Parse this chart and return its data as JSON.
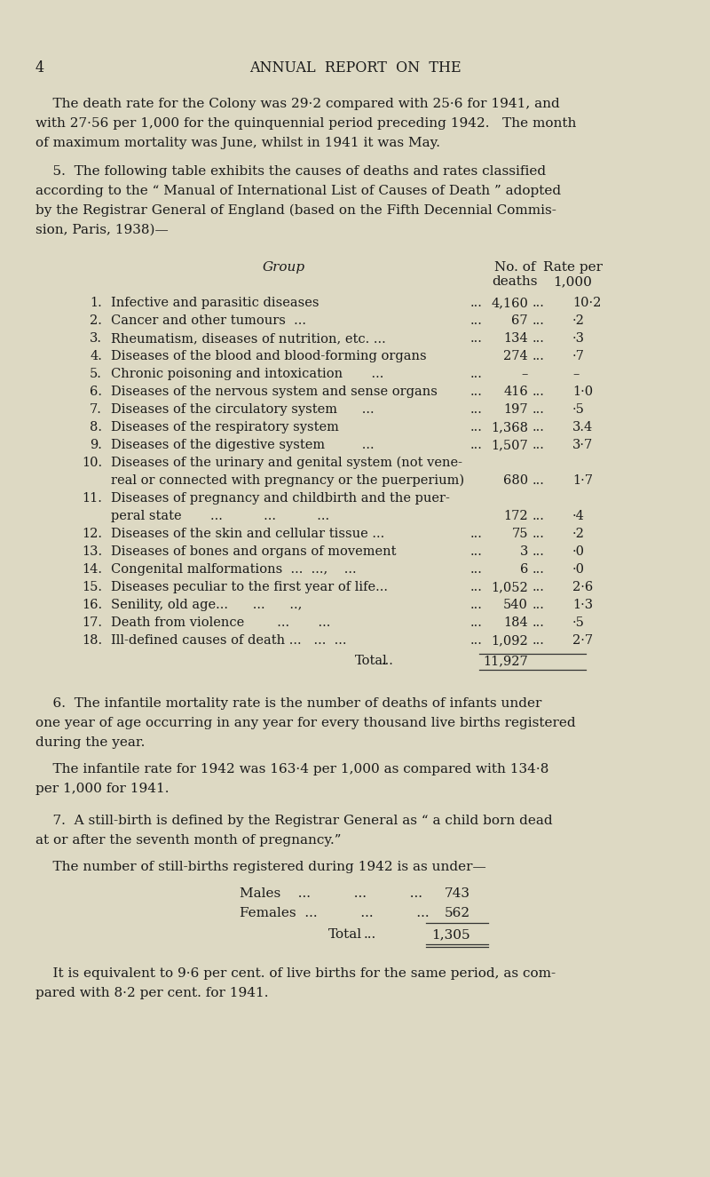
{
  "bg_color": "#ddd9c3",
  "text_color": "#1a1a1a",
  "page_number": "4",
  "header": "ANNUAL  REPORT  ON  THE",
  "para1_lines": [
    "    The death rate for the Colony was 29·2 compared with 25·6 for 1941, and",
    "with 27·56 per 1,000 for the quinquennial period preceding 1942.   The month",
    "of maximum mortality was June, whilst in 1941 it was May."
  ],
  "para2_lines": [
    "    5.  The following table exhibits the causes of deaths and rates classified",
    "according to the “ Manual of International List of Causes of Death ” adopted",
    "by the Registrar General of England (based on the Fifth Decennial Commis-",
    "sion, Paris, 1938)—"
  ],
  "col_group_label": "Group",
  "col_no_deaths": "No. of",
  "col_deaths": "deaths",
  "col_rate_per": "Rate per",
  "col_1000": "1,000",
  "rows": [
    {
      "num": "1.",
      "text": "Infective and parasitic diseases",
      "dots_mid": "...",
      "dots_pre": "...",
      "deaths": "4,160",
      "dots_post": "...",
      "rate": "10·2"
    },
    {
      "num": "2.",
      "text": "Cancer and other tumours  ...",
      "dots_mid": "...",
      "dots_pre": "...",
      "deaths": "67",
      "dots_post": "...",
      "rate": "·2"
    },
    {
      "num": "3.",
      "text": "Rheumatism, diseases of nutrition, etc. ...",
      "dots_mid": "...",
      "dots_pre": "...",
      "deaths": "134",
      "dots_post": "...",
      "rate": "·3"
    },
    {
      "num": "4.",
      "text": "Diseases of the blood and blood-forming organs",
      "dots_mid": "...",
      "dots_pre": "",
      "deaths": "274",
      "dots_post": "...",
      "rate": "·7"
    },
    {
      "num": "5.",
      "text": "Chronic poisoning and intoxication       ...",
      "dots_mid": "...",
      "dots_pre": "...",
      "deaths": "–",
      "dots_post": "",
      "rate": "–"
    },
    {
      "num": "6.",
      "text": "Diseases of the nervous system and sense organs",
      "dots_mid": "...",
      "dots_pre": "...",
      "deaths": "416",
      "dots_post": "...",
      "rate": "1·0"
    },
    {
      "num": "7.",
      "text": "Diseases of the circulatory system      ...",
      "dots_mid": "...",
      "dots_pre": "...",
      "deaths": "197",
      "dots_post": "...",
      "rate": "·5"
    },
    {
      "num": "8.",
      "text": "Diseases of the respiratory system",
      "dots_mid": "...",
      "dots_pre": "...",
      "deaths": "1,368",
      "dots_post": "...",
      "rate": "3.4"
    },
    {
      "num": "9.",
      "text": "Diseases of the digestive system         ...",
      "dots_mid": "...",
      "dots_pre": "...",
      "deaths": "1,507",
      "dots_post": "...",
      "rate": "3·7"
    },
    {
      "num": "10.",
      "text1": "Diseases of the urinary and genital system (not vene-",
      "text2": "real or connected with pregnancy or the puerperium)",
      "deaths": "680",
      "dots_post": "...",
      "rate": "1·7",
      "double": true
    },
    {
      "num": "11.",
      "text1": "Diseases of pregnancy and childbirth and the puer-",
      "text2": "peral state       ...          ...          ...",
      "dots_pre": "...",
      "deaths": "172",
      "dots_post": "...",
      "rate": "·4",
      "double": true
    },
    {
      "num": "12.",
      "text": "Diseases of the skin and cellular tissue ...",
      "dots_mid": "...",
      "dots_pre": "...",
      "deaths": "75",
      "dots_post": "...",
      "rate": "·2"
    },
    {
      "num": "13.",
      "text": "Diseases of bones and organs of movement",
      "dots_mid": "...",
      "dots_pre": "...",
      "deaths": "3",
      "dots_post": "...",
      "rate": "·0"
    },
    {
      "num": "14.",
      "text": "Congenital malformations  ...  ...,    ...",
      "dots_mid": "...",
      "dots_pre": "...",
      "deaths": "6",
      "dots_post": "...",
      "rate": "·0"
    },
    {
      "num": "15.",
      "text": "Diseases peculiar to the first year of life...",
      "dots_mid": "...",
      "dots_pre": "...",
      "deaths": "1,052",
      "dots_post": "...",
      "rate": "2·6"
    },
    {
      "num": "16.",
      "text": "Senility, old age...      ...      ..,",
      "dots_mid": "...,",
      "dots_pre": "...",
      "deaths": "540",
      "dots_post": "...",
      "rate": "1·3"
    },
    {
      "num": "17.",
      "text": "Death from violence        ...       ...",
      "dots_mid": "...",
      "dots_pre": "...",
      "deaths": "184",
      "dots_post": "...",
      "rate": "·5"
    },
    {
      "num": "18.",
      "text": "Ill-defined causes of death ...   ...  ...",
      "dots_mid": "...",
      "dots_pre": "...",
      "deaths": "1,092",
      "dots_post": "...",
      "rate": "2·7"
    }
  ],
  "total_label": "Total",
  "total_dots": "...",
  "total_deaths": "11,927",
  "para6_lines": [
    "    6.  The infantile mortality rate is the number of deaths of infants under",
    "one year of age occurring in any year for every thousand live births registered",
    "during the year."
  ],
  "para6b_lines": [
    "    The infantile rate for 1942 was 163·4 per 1,000 as compared with 134·8",
    "per 1,000 for 1941."
  ],
  "para7_lines": [
    "    7.  A still-birth is defined by the Registrar General as “ a child born dead",
    "at or after the seventh month of pregnancy.”"
  ],
  "para7b": "    The number of still-births registered during 1942 is as under—",
  "sb_males_label": "Males    ...          ...          ...",
  "sb_males_val": "743",
  "sb_females_label": "Females  ...          ...          ...",
  "sb_females_val": "562",
  "sb_total_label": "Total",
  "sb_total_dots": "...",
  "sb_total_val": "1,305",
  "para7c_lines": [
    "    It is equivalent to 9·6 per cent. of live births for the same period, as com-",
    "pared with 8·2 per cent. for 1941."
  ]
}
